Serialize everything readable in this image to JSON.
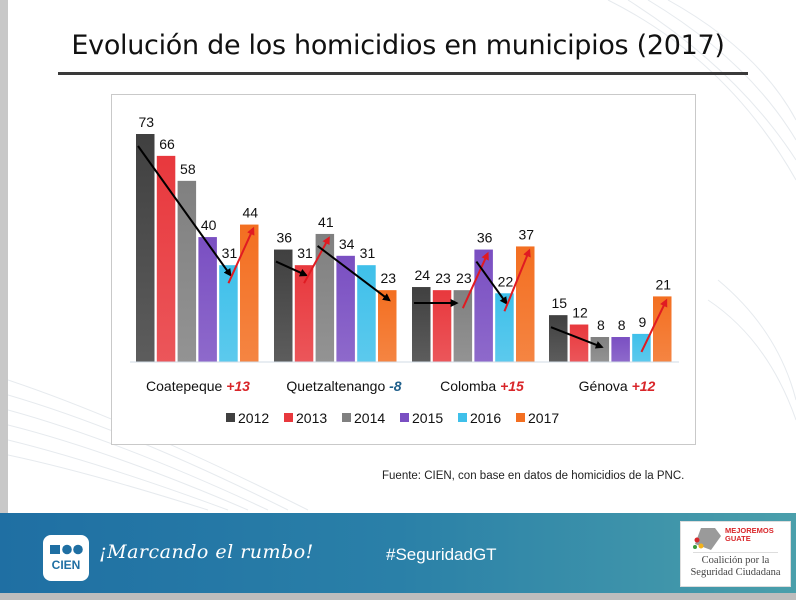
{
  "title": "Evolución de los homicidios en municipios (2017)",
  "source": "Fuente: CIEN, con base en datos de homicidios de la PNC.",
  "footer": {
    "logo_text": "CIEN",
    "slogan": "¡Marcando el rumbo!",
    "hashtag": "#SeguridadGT",
    "partner_brand_line1": "MEJOREMOS",
    "partner_brand_line2": "GUATE",
    "partner_name_line1": "Coalición por la",
    "partner_name_line2": "Seguridad Ciudadana"
  },
  "colors": {
    "footer_start": "#1f6fa3",
    "footer_end": "#4a9fab",
    "increase": "#d9262a",
    "decrease": "#1f5f8b"
  },
  "chart_data": {
    "type": "bar",
    "title": "Evolución de los homicidios en municipios (2017)",
    "xlabel": "",
    "ylabel": "",
    "ylim": [
      0,
      80
    ],
    "grid": false,
    "legend_position": "bottom",
    "categories": [
      "Coatepeque",
      "Quetzaltenango",
      "Colomba",
      "Génova"
    ],
    "category_changes": [
      "+13",
      "-8",
      "+15",
      "+12"
    ],
    "category_change_colors": [
      "#d9262a",
      "#1f5f8b",
      "#d9262a",
      "#d9262a"
    ],
    "series": [
      {
        "name": "2012",
        "color": "#404040",
        "values": [
          73,
          36,
          24,
          15
        ]
      },
      {
        "name": "2013",
        "color": "#e8383d",
        "values": [
          66,
          31,
          23,
          12
        ]
      },
      {
        "name": "2014",
        "color": "#808080",
        "values": [
          58,
          41,
          23,
          8
        ]
      },
      {
        "name": "2015",
        "color": "#7a4fc2",
        "values": [
          40,
          34,
          36,
          8
        ]
      },
      {
        "name": "2016",
        "color": "#3fc0ea",
        "values": [
          31,
          31,
          22,
          9
        ]
      },
      {
        "name": "2017",
        "color": "#f36f21",
        "values": [
          44,
          23,
          37,
          21
        ]
      }
    ],
    "trend_arrows": [
      {
        "category": "Coatepeque",
        "from": "2012",
        "to": "2016",
        "direction": "down"
      },
      {
        "category": "Coatepeque",
        "from": "2016",
        "to": "2017",
        "direction": "up"
      },
      {
        "category": "Quetzaltenango",
        "from": "2012",
        "to": "2013",
        "direction": "down"
      },
      {
        "category": "Quetzaltenango",
        "from": "2013",
        "to": "2014",
        "direction": "up"
      },
      {
        "category": "Quetzaltenango",
        "from": "2014",
        "to": "2017",
        "direction": "down"
      },
      {
        "category": "Colomba",
        "from": "2012",
        "to": "2014",
        "direction": "flat"
      },
      {
        "category": "Colomba",
        "from": "2014",
        "to": "2015",
        "direction": "up"
      },
      {
        "category": "Colomba",
        "from": "2015",
        "to": "2016",
        "direction": "down"
      },
      {
        "category": "Colomba",
        "from": "2016",
        "to": "2017",
        "direction": "up"
      },
      {
        "category": "Génova",
        "from": "2012",
        "to": "2014",
        "direction": "down"
      },
      {
        "category": "Génova",
        "from": "2016",
        "to": "2017",
        "direction": "up"
      }
    ]
  }
}
